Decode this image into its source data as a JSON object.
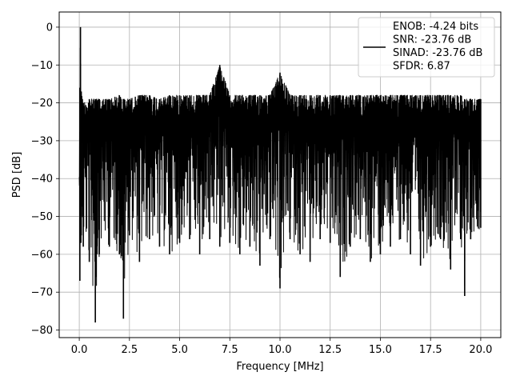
{
  "chart_data": {
    "type": "line",
    "xlabel": "Frequency [MHz]",
    "ylabel": "PSD [dB]",
    "xlim": [
      -1.0,
      21.0
    ],
    "ylim": [
      -82.0,
      4.0
    ],
    "xticks": [
      0.0,
      2.5,
      5.0,
      7.5,
      10.0,
      12.5,
      15.0,
      17.5,
      20.0
    ],
    "xtick_labels": [
      "0.0",
      "2.5",
      "5.0",
      "7.5",
      "10.0",
      "12.5",
      "15.0",
      "17.5",
      "20.0"
    ],
    "yticks": [
      0,
      -10,
      -20,
      -30,
      -40,
      -50,
      -60,
      -70,
      -80
    ],
    "ytick_labels": [
      "0",
      "−10",
      "−20",
      "−30",
      "−40",
      "−50",
      "−60",
      "−70",
      "−80"
    ],
    "grid": true,
    "legend_position": "top-right",
    "legend_lines": [
      "ENOB: -4.24 bits",
      "SNR: -23.76 dB",
      "SINAD: -23.76 dB",
      "SFDR: 6.87"
    ],
    "line_color": "#000000",
    "series": [
      {
        "x": [
          0.0,
          0.03,
          0.06,
          0.08,
          0.1,
          0.2,
          0.5,
          0.8,
          1.0,
          1.5,
          2.0,
          2.2,
          2.5,
          3.0,
          3.5,
          4.0,
          4.5,
          5.0,
          5.5,
          6.0,
          6.5,
          7.0,
          7.5,
          8.0,
          8.5,
          9.0,
          9.5,
          10.0,
          10.5,
          11.0,
          11.5,
          12.0,
          12.5,
          13.0,
          13.5,
          14.0,
          14.5,
          15.0,
          15.5,
          16.0,
          16.5,
          17.0,
          17.5,
          18.0,
          18.5,
          19.0,
          19.2,
          19.5,
          20.0
        ],
        "upper": [
          -37,
          -16,
          0,
          -20,
          -17,
          -20,
          -19,
          -19,
          -19,
          -19,
          -18,
          -19,
          -19,
          -18,
          -18,
          -19,
          -18,
          -18,
          -18,
          -18,
          -18,
          -10,
          -18,
          -18,
          -18,
          -18,
          -18,
          -12,
          -18,
          -18,
          -18,
          -18,
          -18,
          -18,
          -18,
          -18,
          -18,
          -18,
          -18,
          -18,
          -18,
          -18,
          -18,
          -18,
          -18,
          -18,
          -19,
          -19,
          -19
        ],
        "lower": [
          -37,
          -67,
          -50,
          -57,
          -55,
          -58,
          -62,
          -78,
          -60,
          -58,
          -60,
          -77,
          -55,
          -62,
          -56,
          -58,
          -60,
          -57,
          -56,
          -60,
          -56,
          -58,
          -57,
          -60,
          -58,
          -63,
          -56,
          -69,
          -56,
          -60,
          -62,
          -56,
          -57,
          -66,
          -58,
          -56,
          -62,
          -60,
          -58,
          -56,
          -60,
          -63,
          -58,
          -56,
          -64,
          -56,
          -71,
          -56,
          -53
        ]
      }
    ]
  }
}
